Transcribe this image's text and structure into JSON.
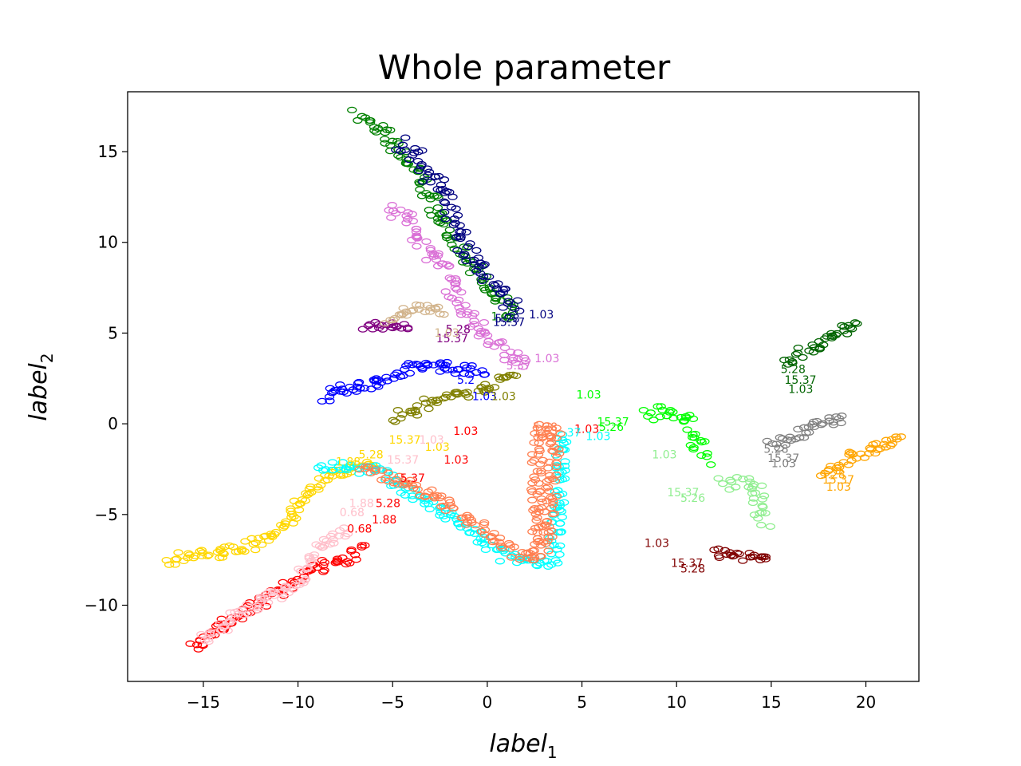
{
  "chart_data": {
    "type": "scatter",
    "title": "Whole parameter",
    "xlabel": {
      "main": "label",
      "sub": "1"
    },
    "ylabel": {
      "main": "label",
      "sub": "2"
    },
    "xlim": [
      -19,
      22.8
    ],
    "ylim": [
      -14.2,
      18.3
    ],
    "xticks": [
      -15,
      -10,
      -5,
      0,
      5,
      10,
      15,
      20
    ],
    "yticks": [
      -10,
      -5,
      0,
      5,
      10,
      15
    ],
    "xtick_labels": [
      "−15",
      "−10",
      "−5",
      "0",
      "5",
      "10",
      "15",
      "20"
    ],
    "ytick_labels": [
      "−10",
      "−5",
      "0",
      "5",
      "10",
      "15"
    ],
    "grid": false,
    "series": [
      {
        "color": "#008000",
        "path": [
          [
            -6.8,
            17.0
          ],
          [
            -5.5,
            16.0
          ],
          [
            -3.8,
            14.0
          ],
          [
            -2.5,
            11.5
          ],
          [
            -1.5,
            9.5
          ],
          [
            0.0,
            7.5
          ],
          [
            1.5,
            6.0
          ]
        ],
        "width": 0.7
      },
      {
        "color": "#000080",
        "path": [
          [
            -4.5,
            15.5
          ],
          [
            -3.5,
            14.5
          ],
          [
            -2.5,
            13.0
          ],
          [
            -1.8,
            11.0
          ],
          [
            -1.0,
            9.5
          ],
          [
            0.0,
            8.0
          ],
          [
            1.5,
            6.2
          ]
        ],
        "width": 0.8
      },
      {
        "color": "#DA70D6",
        "path": [
          [
            -5.0,
            12.0
          ],
          [
            -4.0,
            11.0
          ],
          [
            -3.0,
            9.5
          ],
          [
            -2.0,
            8.0
          ],
          [
            -1.5,
            6.5
          ],
          [
            0.0,
            5.0
          ],
          [
            1.0,
            3.8
          ],
          [
            2.0,
            3.2
          ]
        ],
        "width": 0.8
      },
      {
        "color": "#800080",
        "path": [
          [
            -6.5,
            5.4
          ],
          [
            -5.0,
            5.4
          ],
          [
            -4.0,
            5.3
          ]
        ],
        "width": 0.4
      },
      {
        "color": "#D2B48C",
        "path": [
          [
            -5.2,
            5.6
          ],
          [
            -4.5,
            5.9
          ],
          [
            -4.0,
            6.4
          ],
          [
            -3.0,
            6.4
          ],
          [
            -2.3,
            6.2
          ]
        ],
        "width": 0.5
      },
      {
        "color": "#0000FF",
        "path": [
          [
            -8.6,
            1.3
          ],
          [
            -8.0,
            1.8
          ],
          [
            -6.8,
            2.1
          ],
          [
            -5.5,
            2.4
          ],
          [
            -4.5,
            2.7
          ],
          [
            -3.8,
            3.2
          ],
          [
            -3.0,
            3.2
          ],
          [
            -1.0,
            3.0
          ],
          [
            0.0,
            2.8
          ]
        ],
        "width": 0.6
      },
      {
        "color": "#808000",
        "path": [
          [
            -4.8,
            0.3
          ],
          [
            -4.2,
            0.6
          ],
          [
            -3.5,
            1.0
          ],
          [
            -2.0,
            1.5
          ],
          [
            -0.5,
            1.8
          ],
          [
            0.5,
            2.3
          ],
          [
            1.5,
            2.8
          ]
        ],
        "width": 0.6
      },
      {
        "color": "#00FF00",
        "path": [
          [
            8.5,
            0.6
          ],
          [
            9.5,
            0.7
          ],
          [
            10.3,
            0.5
          ],
          [
            11.0,
            -0.8
          ],
          [
            11.5,
            -2.0
          ]
        ],
        "width": 0.8
      },
      {
        "color": "#90EE90",
        "path": [
          [
            12.5,
            -3.3
          ],
          [
            13.5,
            -3.3
          ],
          [
            14.2,
            -3.6
          ],
          [
            14.5,
            -4.8
          ],
          [
            14.9,
            -5.6
          ]
        ],
        "width": 0.8
      },
      {
        "color": "#800000",
        "path": [
          [
            12.0,
            -7.1
          ],
          [
            13.5,
            -7.3
          ],
          [
            15.0,
            -7.6
          ]
        ],
        "width": 0.5
      },
      {
        "color": "#006400",
        "path": [
          [
            15.8,
            3.5
          ],
          [
            16.8,
            4.0
          ],
          [
            17.8,
            4.6
          ],
          [
            19.0,
            5.3
          ],
          [
            19.8,
            5.4
          ]
        ],
        "width": 0.6
      },
      {
        "color": "#808080",
        "path": [
          [
            15.0,
            -1.2
          ],
          [
            16.0,
            -0.8
          ],
          [
            17.0,
            -0.3
          ],
          [
            18.0,
            0.1
          ],
          [
            18.8,
            0.3
          ]
        ],
        "width": 0.6
      },
      {
        "color": "#FFA500",
        "path": [
          [
            17.8,
            -2.7
          ],
          [
            19.0,
            -2.0
          ],
          [
            20.5,
            -1.3
          ],
          [
            22.0,
            -0.9
          ]
        ],
        "width": 0.6
      },
      {
        "color": "#FFD700",
        "path": [
          [
            -16.8,
            -7.5
          ],
          [
            -15.0,
            -7.2
          ],
          [
            -13.0,
            -6.9
          ],
          [
            -11.5,
            -6.3
          ],
          [
            -10.5,
            -5.4
          ],
          [
            -9.8,
            -4.2
          ],
          [
            -8.5,
            -3.0
          ],
          [
            -7.0,
            -2.5
          ],
          [
            -6.0,
            -2.2
          ]
        ],
        "width": 0.6
      },
      {
        "color": "#00FFFF",
        "path": [
          [
            -8.8,
            -2.3
          ],
          [
            -6.0,
            -2.5
          ],
          [
            -4.0,
            -3.8
          ],
          [
            -1.5,
            -5.5
          ],
          [
            1.0,
            -7.4
          ],
          [
            3.5,
            -7.6
          ],
          [
            3.8,
            -4.0
          ],
          [
            4.0,
            -0.5
          ]
        ],
        "width": 0.6
      },
      {
        "color": "#FF7F50",
        "path": [
          [
            -6.5,
            -2.4
          ],
          [
            -4.0,
            -3.5
          ],
          [
            -2.0,
            -4.5
          ],
          [
            0.0,
            -6.0
          ],
          [
            1.5,
            -7.2
          ],
          [
            2.7,
            -7.3
          ],
          [
            2.6,
            -3.5
          ],
          [
            2.7,
            -0.3
          ],
          [
            3.6,
            -0.5
          ],
          [
            3.3,
            -5.0
          ],
          [
            3.1,
            -7.0
          ]
        ],
        "width": 0.6
      },
      {
        "color": "#FF0000",
        "path": [
          [
            -15.5,
            -12.3
          ],
          [
            -14.0,
            -11.2
          ],
          [
            -12.5,
            -10.2
          ],
          [
            -11.0,
            -9.3
          ],
          [
            -9.8,
            -8.3
          ],
          [
            -8.5,
            -7.8
          ],
          [
            -7.3,
            -7.5
          ],
          [
            -6.5,
            -6.8
          ]
        ],
        "width": 0.6
      },
      {
        "color": "#FFC0CB",
        "path": [
          [
            -15.0,
            -11.9
          ],
          [
            -13.5,
            -10.8
          ],
          [
            -12.0,
            -9.8
          ],
          [
            -10.0,
            -8.8
          ],
          [
            -9.5,
            -7.9
          ],
          [
            -9.0,
            -6.8
          ],
          [
            -8.0,
            -6.3
          ],
          [
            -7.2,
            -5.8
          ]
        ],
        "width": 0.6
      }
    ],
    "annotations": [
      {
        "text": "1.03",
        "x": 0.2,
        "y": 5.7,
        "color": "#008000"
      },
      {
        "text": "5.28",
        "x": 0.4,
        "y": 5.6,
        "color": "#000080"
      },
      {
        "text": "15.37",
        "x": 0.3,
        "y": 5.4,
        "color": "#000080"
      },
      {
        "text": "1.03",
        "x": 2.2,
        "y": 5.8,
        "color": "#000080"
      },
      {
        "text": "15.37",
        "x": -2.7,
        "y": 4.5,
        "color": "#800080"
      },
      {
        "text": "5.28",
        "x": -2.2,
        "y": 5.0,
        "color": "#800080"
      },
      {
        "text": "1.03",
        "x": -2.8,
        "y": 4.8,
        "color": "#D2B48C"
      },
      {
        "text": "1.03",
        "x": 2.5,
        "y": 3.4,
        "color": "#DA70D6"
      },
      {
        "text": "5.37",
        "x": 1.0,
        "y": 3.0,
        "color": "#DA70D6"
      },
      {
        "text": "5.2",
        "x": -1.6,
        "y": 2.2,
        "color": "#0000FF"
      },
      {
        "text": "1.03",
        "x": -0.8,
        "y": 1.3,
        "color": "#0000FF"
      },
      {
        "text": "1.03",
        "x": 0.2,
        "y": 1.3,
        "color": "#808000"
      },
      {
        "text": "1.03",
        "x": 4.7,
        "y": 1.4,
        "color": "#00FF00"
      },
      {
        "text": "15.37",
        "x": 5.8,
        "y": -0.1,
        "color": "#00FF00"
      },
      {
        "text": "5.26",
        "x": 5.9,
        "y": -0.4,
        "color": "#00FF00"
      },
      {
        "text": "1.03",
        "x": 8.7,
        "y": -1.9,
        "color": "#90EE90"
      },
      {
        "text": "15.37",
        "x": 9.5,
        "y": -4.0,
        "color": "#90EE90"
      },
      {
        "text": "5.26",
        "x": 10.2,
        "y": -4.3,
        "color": "#90EE90"
      },
      {
        "text": "1.03",
        "x": 8.3,
        "y": -6.8,
        "color": "#800000"
      },
      {
        "text": "15.37",
        "x": 9.7,
        "y": -7.9,
        "color": "#800000"
      },
      {
        "text": "5.28",
        "x": 10.2,
        "y": -8.2,
        "color": "#800000"
      },
      {
        "text": "5.28",
        "x": 15.5,
        "y": 2.8,
        "color": "#006400"
      },
      {
        "text": "15.37",
        "x": 15.7,
        "y": 2.2,
        "color": "#006400"
      },
      {
        "text": "1.03",
        "x": 15.9,
        "y": 1.7,
        "color": "#006400"
      },
      {
        "text": "5.28",
        "x": 14.6,
        "y": -1.6,
        "color": "#808080"
      },
      {
        "text": "15.37",
        "x": 14.8,
        "y": -2.1,
        "color": "#808080"
      },
      {
        "text": "1.03",
        "x": 15.0,
        "y": -2.4,
        "color": "#808080"
      },
      {
        "text": "15.37",
        "x": 17.7,
        "y": -3.3,
        "color": "#FFA500"
      },
      {
        "text": "1.03",
        "x": 17.9,
        "y": -3.7,
        "color": "#FFA500"
      },
      {
        "text": "5.28",
        "x": 17.6,
        "y": -3.0,
        "color": "#FFA500"
      },
      {
        "text": "1.03",
        "x": -1.8,
        "y": -0.6,
        "color": "#FF0000"
      },
      {
        "text": "1.03",
        "x": -2.3,
        "y": -2.2,
        "color": "#FF0000"
      },
      {
        "text": "5.37",
        "x": -4.6,
        "y": -3.2,
        "color": "#FF0000"
      },
      {
        "text": "5.28",
        "x": -5.9,
        "y": -4.6,
        "color": "#FF0000"
      },
      {
        "text": "1.88",
        "x": -6.1,
        "y": -5.5,
        "color": "#FF0000"
      },
      {
        "text": "0.68",
        "x": -7.4,
        "y": -6.0,
        "color": "#FF0000"
      },
      {
        "text": "15.37",
        "x": -5.2,
        "y": -1.1,
        "color": "#FFD700"
      },
      {
        "text": "1.03",
        "x": -3.3,
        "y": -1.5,
        "color": "#FFD700"
      },
      {
        "text": "5.28",
        "x": -6.8,
        "y": -1.9,
        "color": "#FFD700"
      },
      {
        "text": "1.88",
        "x": -8.0,
        "y": -2.3,
        "color": "#FFD700"
      },
      {
        "text": "15.37",
        "x": -5.3,
        "y": -2.2,
        "color": "#FFC0CB"
      },
      {
        "text": "1.03",
        "x": -3.6,
        "y": -1.1,
        "color": "#FFC0CB"
      },
      {
        "text": "1.88",
        "x": -7.3,
        "y": -4.6,
        "color": "#FFC0CB"
      },
      {
        "text": "0.68",
        "x": -7.8,
        "y": -5.1,
        "color": "#FFC0CB"
      },
      {
        "text": "1.03",
        "x": 2.4,
        "y": -0.6,
        "color": "#FF7F50"
      },
      {
        "text": "5.28",
        "x": 2.4,
        "y": -0.4,
        "color": "#FF7F50"
      },
      {
        "text": "1.03",
        "x": 4.6,
        "y": -0.5,
        "color": "#FF0000"
      },
      {
        "text": "1.03",
        "x": 5.2,
        "y": -0.9,
        "color": "#00FFFF"
      },
      {
        "text": "37",
        "x": 4.2,
        "y": -0.7,
        "color": "#00FFFF"
      }
    ]
  }
}
